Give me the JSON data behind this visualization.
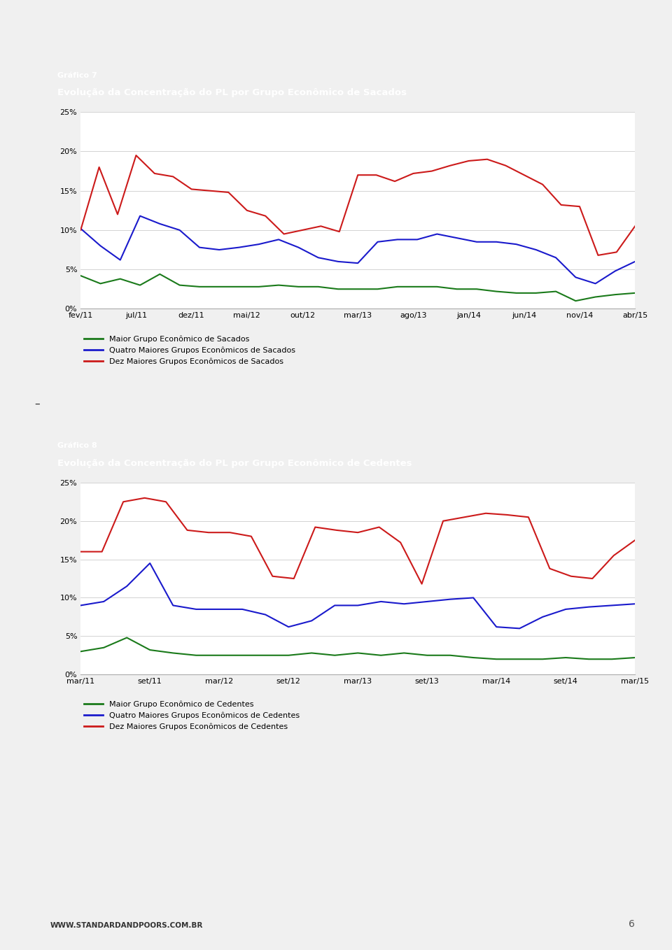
{
  "chart1": {
    "title_line1": "Gráfico 7",
    "title_line2": "Evolução da Concentração do PL por Grupo Econômico de Sacados",
    "x_labels": [
      "fev/11",
      "jul/11",
      "dez/11",
      "mai/12",
      "out/12",
      "mar/13",
      "ago/13",
      "jan/14",
      "jun/14",
      "nov/14",
      "abr/15"
    ],
    "green": [
      4.2,
      3.2,
      3.8,
      3.0,
      4.4,
      3.0,
      2.8,
      2.8,
      2.8,
      2.8,
      3.0,
      2.8,
      2.8,
      2.5,
      2.5,
      2.5,
      2.8,
      2.8,
      2.8,
      2.5,
      2.5,
      2.2,
      2.0,
      2.0,
      2.2,
      1.0,
      1.5,
      1.8,
      2.0
    ],
    "blue": [
      10.2,
      8.0,
      6.2,
      11.8,
      10.8,
      10.0,
      7.8,
      7.5,
      7.8,
      8.2,
      8.8,
      7.8,
      6.5,
      6.0,
      5.8,
      8.5,
      8.8,
      8.8,
      9.5,
      9.0,
      8.5,
      8.5,
      8.2,
      7.5,
      6.5,
      4.0,
      3.2,
      4.8,
      6.0
    ],
    "red": [
      10.0,
      18.0,
      12.0,
      19.5,
      17.2,
      16.8,
      15.2,
      15.0,
      14.8,
      12.5,
      11.8,
      9.5,
      10.0,
      10.5,
      9.8,
      17.0,
      17.0,
      16.2,
      17.2,
      17.5,
      18.2,
      18.8,
      19.0,
      18.2,
      17.0,
      15.8,
      13.2,
      13.0,
      6.8,
      7.2,
      10.5
    ],
    "ylim": [
      0,
      0.25
    ],
    "yticks": [
      0,
      0.05,
      0.1,
      0.15,
      0.2,
      0.25
    ],
    "ytick_labels": [
      "0%",
      "5%",
      "10%",
      "15%",
      "20%",
      "25%"
    ],
    "legend1": "Maior Grupo Econômico de Sacados",
    "legend2": "Quatro Maiores Grupos Econômicos de Sacados",
    "legend3": "Dez Maiores Grupos Econômicos de Sacados"
  },
  "chart2": {
    "title_line1": "Gráfico 8",
    "title_line2": "Evolução da Concentração do PL por Grupo Econômico de Cedentes",
    "x_labels": [
      "mar/11",
      "set/11",
      "mar/12",
      "set/12",
      "mar/13",
      "set/13",
      "mar/14",
      "set/14",
      "mar/15"
    ],
    "green": [
      3.0,
      3.5,
      4.8,
      3.2,
      2.8,
      2.5,
      2.5,
      2.5,
      2.5,
      2.5,
      2.8,
      2.5,
      2.8,
      2.5,
      2.8,
      2.5,
      2.5,
      2.2,
      2.0,
      2.0,
      2.0,
      2.2,
      2.0,
      2.0,
      2.2
    ],
    "blue": [
      9.0,
      9.5,
      11.5,
      14.5,
      9.0,
      8.5,
      8.5,
      8.5,
      7.8,
      6.2,
      7.0,
      9.0,
      9.0,
      9.5,
      9.2,
      9.5,
      9.8,
      10.0,
      6.2,
      6.0,
      7.5,
      8.5,
      8.8,
      9.0,
      9.2
    ],
    "red": [
      16.0,
      16.0,
      22.5,
      23.0,
      22.5,
      18.8,
      18.5,
      18.5,
      18.0,
      12.8,
      12.5,
      19.2,
      18.8,
      18.5,
      19.2,
      17.2,
      11.8,
      20.0,
      20.5,
      21.0,
      20.8,
      20.5,
      13.8,
      12.8,
      12.5,
      15.5,
      17.5
    ],
    "ylim": [
      0,
      0.25
    ],
    "yticks": [
      0,
      0.05,
      0.1,
      0.15,
      0.2,
      0.25
    ],
    "ytick_labels": [
      "0%",
      "5%",
      "10%",
      "15%",
      "20%",
      "25%"
    ],
    "legend1": "Maior Grupo Econômico de Cedentes",
    "legend2": "Quatro Maiores Grupos Econômicos de Cedentes",
    "legend3": "Dez Maiores Grupos Econômicos de Cedentes"
  },
  "header_color": "#c0182a",
  "green_color": "#1a7a1a",
  "blue_color": "#1a1acc",
  "red_color": "#cc1a1a",
  "footer_text": "WWW.STANDARDANDPOORS.COM.BR",
  "page_number": "6",
  "page_bg": "#f0f0f0",
  "chart_outer_bg": "#e8e8e8",
  "chart_inner_bg": "#ffffff",
  "dash_separator": "–"
}
